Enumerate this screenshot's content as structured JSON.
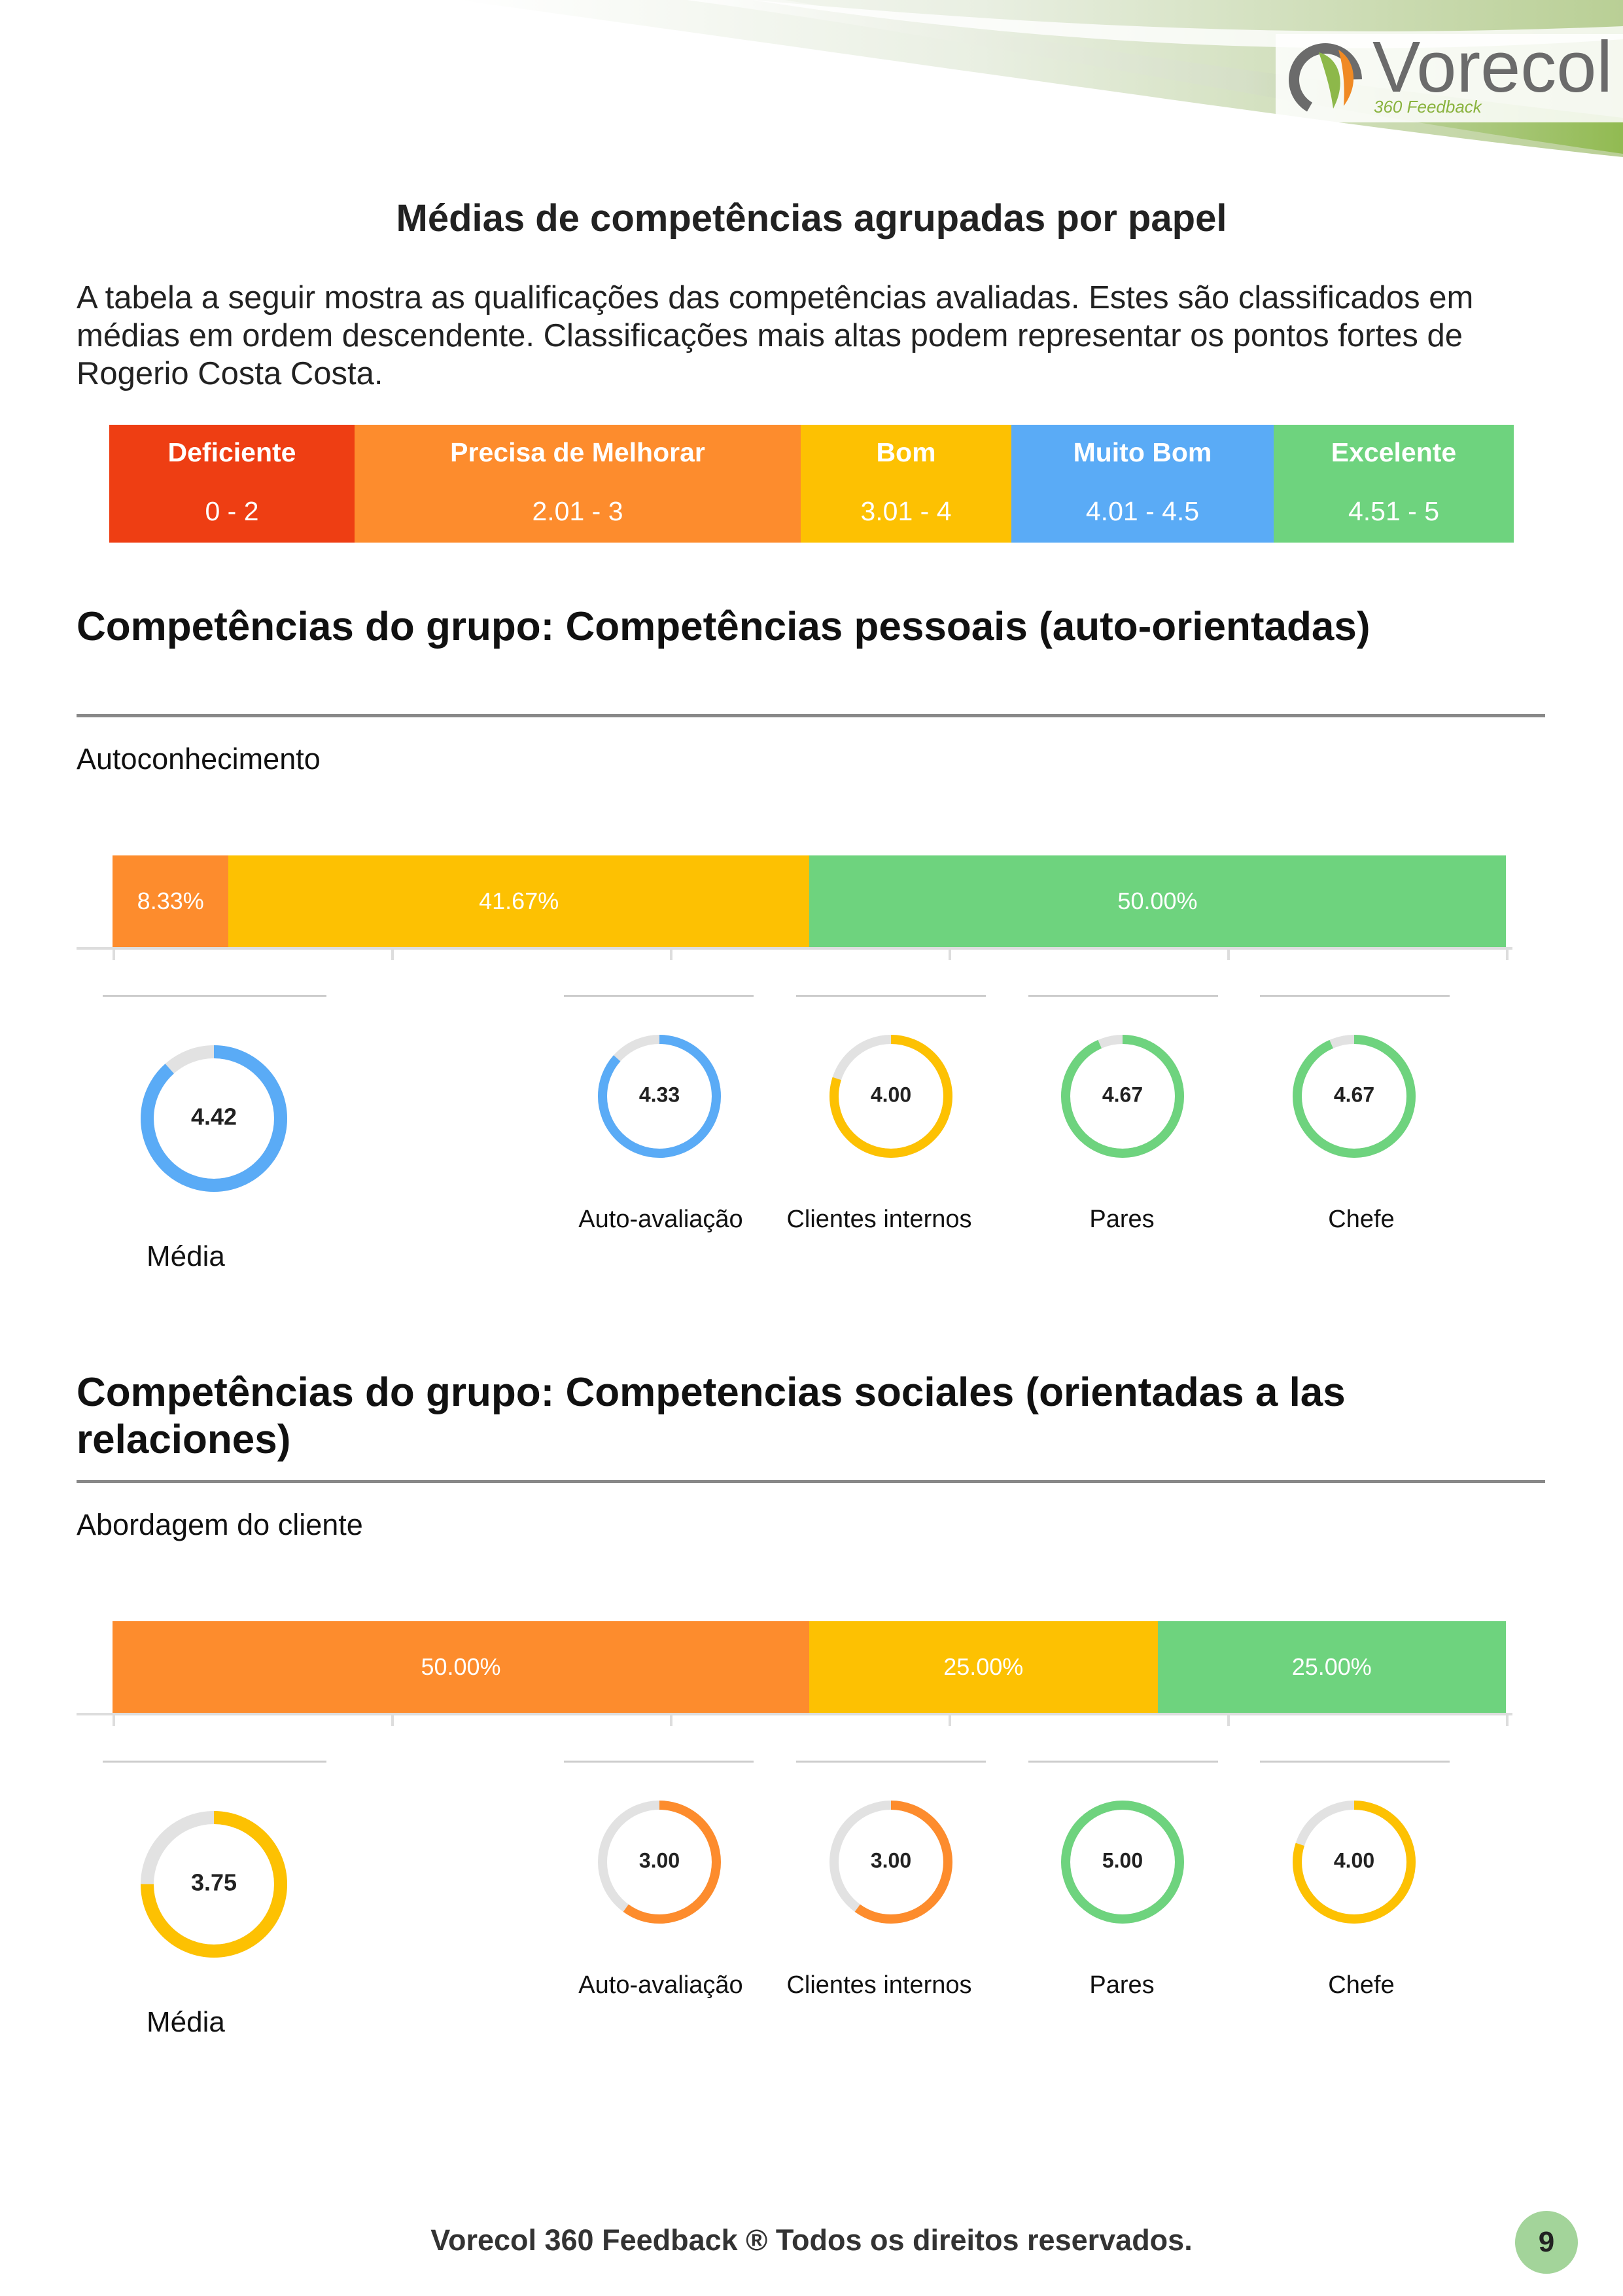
{
  "header": {
    "logo_name": "Vorecol",
    "logo_sub": "360 Feedback",
    "colors": {
      "band_green": "#8db84a",
      "band_light": "#e8f0d8",
      "logo_orange": "#f08a24",
      "logo_gray": "#6b6b6b"
    }
  },
  "page_title": "Médias de competências agrupadas por papel",
  "intro": "A tabela a seguir mostra as qualificações das competências avaliadas. Estes são classificados em médias em ordem descendente. Classificações mais altas podem representar os pontos fortes de Rogerio Costa Costa.",
  "legend": [
    {
      "label": "Deficiente",
      "range": "0  -  2",
      "color": "#ee3e13"
    },
    {
      "label": "Precisa de Melhorar",
      "range": "2.01  -  3",
      "color": "#fd8c2d"
    },
    {
      "label": "Bom",
      "range": "3.01  -  4",
      "color": "#fdc102"
    },
    {
      "label": "Muito Bom",
      "range": "4.01  -  4.5",
      "color": "#5aabf6"
    },
    {
      "label": "Excelente",
      "range": "4.51  -  5",
      "color": "#6ed37e"
    }
  ],
  "groups": [
    {
      "title": "Competências do grupo: Competências pessoais (auto-orientadas)",
      "competency": "Autoconhecimento",
      "segments": [
        {
          "label": "8.33%",
          "value": 8.33,
          "color": "#fd8c2d"
        },
        {
          "label": "41.67%",
          "value": 41.67,
          "color": "#fdc102"
        },
        {
          "label": "50.00%",
          "value": 50.0,
          "color": "#6ed37e"
        }
      ],
      "average": {
        "label": "Média",
        "value": "4.42",
        "score": 4.42,
        "color": "#5aabf6"
      },
      "roles": [
        {
          "label": "Auto-avaliação",
          "value": "4.33",
          "score": 4.33,
          "color": "#5aabf6"
        },
        {
          "label": "Clientes internos",
          "value": "4.00",
          "score": 4.0,
          "color": "#fdc102"
        },
        {
          "label": "Pares",
          "value": "4.67",
          "score": 4.67,
          "color": "#6ed37e"
        },
        {
          "label": "Chefe",
          "value": "4.67",
          "score": 4.67,
          "color": "#6ed37e"
        }
      ]
    },
    {
      "title": "Competências do grupo: Competencias sociales (orientadas a las relaciones)",
      "competency": "Abordagem do cliente",
      "segments": [
        {
          "label": "50.00%",
          "value": 50.0,
          "color": "#fd8c2d"
        },
        {
          "label": "25.00%",
          "value": 25.0,
          "color": "#fdc102"
        },
        {
          "label": "25.00%",
          "value": 25.0,
          "color": "#6ed37e"
        }
      ],
      "average": {
        "label": "Média",
        "value": "3.75",
        "score": 3.75,
        "color": "#fdc102"
      },
      "roles": [
        {
          "label": "Auto-avaliação",
          "value": "3.00",
          "score": 3.0,
          "color": "#fd8c2d"
        },
        {
          "label": "Clientes internos",
          "value": "3.00",
          "score": 3.0,
          "color": "#fd8c2d"
        },
        {
          "label": "Pares",
          "value": "5.00",
          "score": 5.0,
          "color": "#6ed37e"
        },
        {
          "label": "Chefe",
          "value": "4.00",
          "score": 4.0,
          "color": "#fdc102"
        }
      ]
    }
  ],
  "donut_max": 5,
  "footer": {
    "text": "Vorecol 360 Feedback ® Todos os direitos reservados.",
    "page": "9"
  }
}
